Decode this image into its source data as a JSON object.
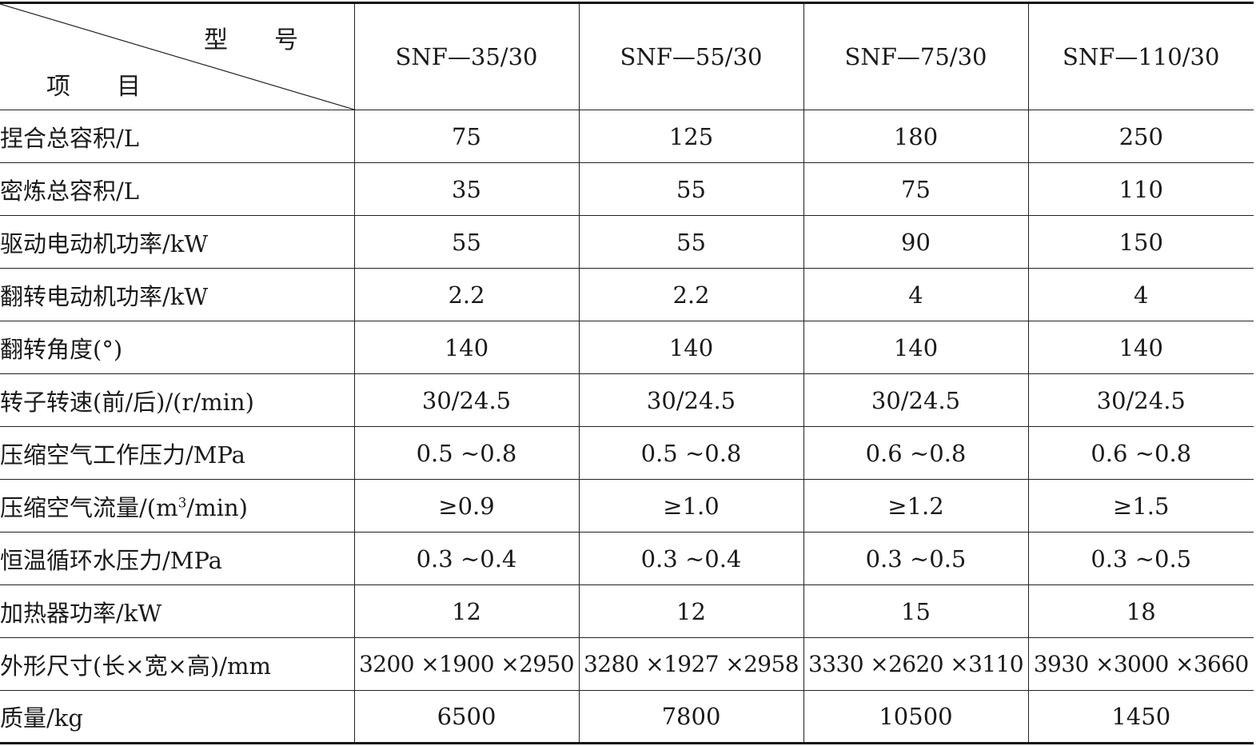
{
  "header": {
    "corner_top": "型号",
    "corner_bottom": "项目",
    "models": [
      "SNF—35/30",
      "SNF—55/30",
      "SNF—75/30",
      "SNF—110/30"
    ]
  },
  "rows": [
    {
      "label": "捏合总容积/L",
      "values": [
        "75",
        "125",
        "180",
        "250"
      ]
    },
    {
      "label": "密炼总容积/L",
      "values": [
        "35",
        "55",
        "75",
        "110"
      ]
    },
    {
      "label": "驱动电动机功率/kW",
      "values": [
        "55",
        "55",
        "90",
        "150"
      ]
    },
    {
      "label": "翻转电动机功率/kW",
      "values": [
        "2.2",
        "2.2",
        "4",
        "4"
      ]
    },
    {
      "label": "翻转角度(°)",
      "values": [
        "140",
        "140",
        "140",
        "140"
      ]
    },
    {
      "label": "转子转速(前/后)/(r/min)",
      "values": [
        "30/24.5",
        "30/24.5",
        "30/24.5",
        "30/24.5"
      ]
    },
    {
      "label": "压缩空气工作压力/MPa",
      "values": [
        "0.5 ~0.8",
        "0.5 ~0.8",
        "0.6 ~0.8",
        "0.6 ~0.8"
      ]
    },
    {
      "label_pre": "压缩空气流量/(m",
      "label_sup": "3",
      "label_post": "/min)",
      "values": [
        "≥0.9",
        "≥1.0",
        "≥1.2",
        "≥1.5"
      ]
    },
    {
      "label": "恒温循环水压力/MPa",
      "values": [
        "0.3 ~0.4",
        "0.3 ~0.4",
        "0.3 ~0.5",
        "0.3 ~0.5"
      ]
    },
    {
      "label": "加热器功率/kW",
      "values": [
        "12",
        "12",
        "15",
        "18"
      ]
    },
    {
      "label": "外形尺寸(长×宽×高)/mm",
      "values": [
        "3200 ×1900 ×2950",
        "3280 ×1927 ×2958",
        "3330 ×2620 ×3110",
        "3930 ×3000 ×3660"
      ]
    },
    {
      "label": "质量/kg",
      "values": [
        "6500",
        "7800",
        "10500",
        "1450"
      ]
    }
  ]
}
